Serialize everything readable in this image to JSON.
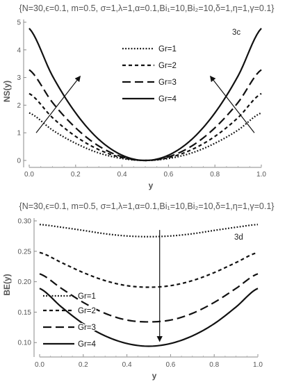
{
  "chart_data": [
    {
      "type": "line",
      "params": "{N=30,ϵ=0.1, m=0.5, σ=1,λ=1,α=0.1,Bi₁=10,Bi₂=10,δ=1,η=1,γ=0.1}",
      "panel_label": "3c",
      "xlabel": "y",
      "ylabel": "NS(y)",
      "xlim": [
        0,
        1
      ],
      "ylim": [
        0,
        5
      ],
      "xticks": [
        "0.0",
        "0.2",
        "0.4",
        "0.6",
        "0.8",
        "1.0"
      ],
      "yticks": [
        "0",
        "1",
        "2",
        "3",
        "4",
        "5"
      ],
      "grid": false,
      "legend_position": "top-center",
      "x": [
        0,
        0.1,
        0.2,
        0.3,
        0.4,
        0.5,
        0.6,
        0.7,
        0.8,
        0.9,
        1.0
      ],
      "series": [
        {
          "name": "Gr=1",
          "style": "dotted",
          "values": [
            1.72,
            1.1,
            0.62,
            0.27,
            0.07,
            0.0,
            0.07,
            0.27,
            0.62,
            1.1,
            1.72
          ]
        },
        {
          "name": "Gr=2",
          "style": "short-dash",
          "values": [
            2.42,
            1.55,
            0.87,
            0.39,
            0.1,
            0.0,
            0.1,
            0.39,
            0.87,
            1.55,
            2.42
          ]
        },
        {
          "name": "Gr=3",
          "style": "long-dash",
          "values": [
            3.28,
            2.1,
            1.18,
            0.52,
            0.13,
            0.0,
            0.13,
            0.52,
            1.18,
            2.1,
            3.28
          ]
        },
        {
          "name": "Gr=4",
          "style": "solid",
          "values": [
            4.78,
            3.06,
            1.72,
            0.76,
            0.19,
            0.0,
            0.19,
            0.76,
            1.72,
            3.06,
            4.78
          ]
        }
      ],
      "arrows": [
        {
          "from": [
            0.03,
            1.0
          ],
          "to": [
            0.22,
            3.05
          ]
        },
        {
          "from": [
            0.97,
            1.0
          ],
          "to": [
            0.78,
            3.05
          ]
        }
      ]
    },
    {
      "type": "line",
      "params": "{N=30,ϵ=0.1, m=0.5, σ=1,λ=1,α=0.1,Bi₁=10,Bi₂=10,δ=1,η=1,γ=0.1}",
      "panel_label": "3d",
      "xlabel": "y",
      "ylabel": "BE(y)",
      "xlim": [
        0,
        1
      ],
      "ylim": [
        0.09,
        0.3
      ],
      "xticks": [
        "0.0",
        "0.2",
        "0.4",
        "0.6",
        "0.8",
        "1.0"
      ],
      "yticks": [
        "0.10",
        "0.15",
        "0.20",
        "0.25",
        "0.30"
      ],
      "grid": false,
      "legend_position": "bottom-left",
      "x": [
        0,
        0.1,
        0.2,
        0.3,
        0.4,
        0.5,
        0.6,
        0.7,
        0.8,
        0.9,
        1.0
      ],
      "series": [
        {
          "name": "Gr=1",
          "style": "dotted",
          "values": [
            0.294,
            0.2895,
            0.2843,
            0.2788,
            0.2752,
            0.274,
            0.2752,
            0.2788,
            0.2843,
            0.2895,
            0.294
          ]
        },
        {
          "name": "Gr=2",
          "style": "short-dash",
          "values": [
            0.248,
            0.2315,
            0.215,
            0.2018,
            0.1935,
            0.191,
            0.1935,
            0.2018,
            0.215,
            0.2315,
            0.248
          ]
        },
        {
          "name": "Gr=3",
          "style": "long-dash",
          "values": [
            0.213,
            0.189,
            0.166,
            0.148,
            0.137,
            0.134,
            0.137,
            0.148,
            0.166,
            0.189,
            0.213
          ]
        },
        {
          "name": "Gr=4",
          "style": "solid",
          "values": [
            0.189,
            0.1585,
            0.131,
            0.111,
            0.0985,
            0.094,
            0.0985,
            0.111,
            0.131,
            0.1585,
            0.189
          ]
        }
      ],
      "arrows": [
        {
          "from": [
            0.55,
            0.285
          ],
          "to": [
            0.55,
            0.102
          ]
        }
      ]
    }
  ]
}
